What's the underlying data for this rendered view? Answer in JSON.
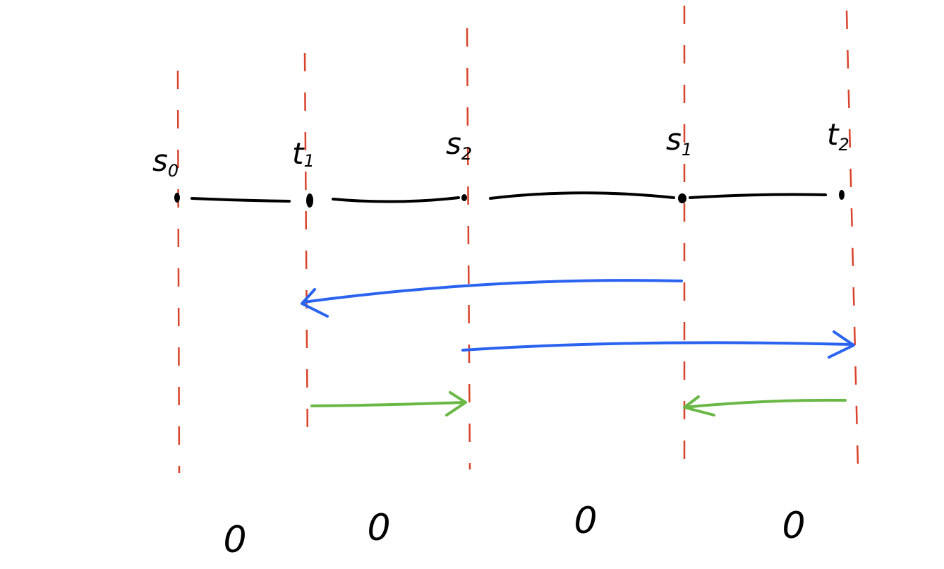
{
  "points": [
    {
      "main": "s",
      "sub": "0"
    },
    {
      "main": "t",
      "sub": "1"
    },
    {
      "main": "s",
      "sub": "2"
    },
    {
      "main": "s",
      "sub": "1"
    },
    {
      "main": "t",
      "sub": "2"
    }
  ],
  "regions": [
    "0",
    "0",
    "0",
    "0"
  ]
}
